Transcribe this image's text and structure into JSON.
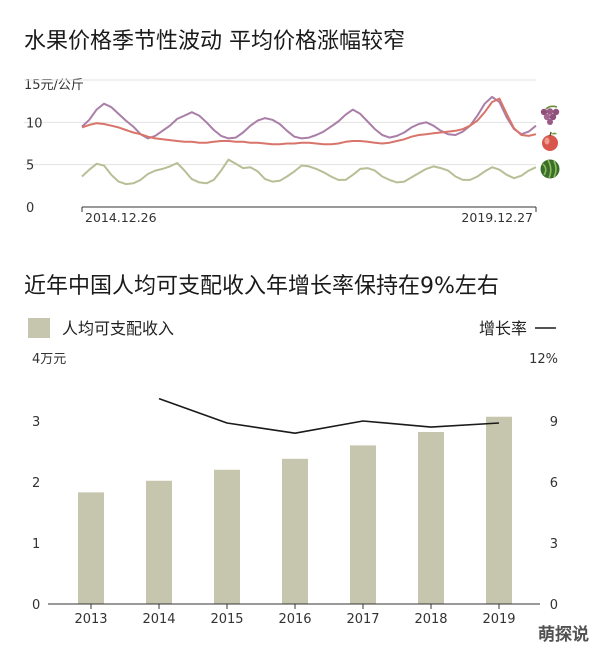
{
  "chart_data": [
    {
      "type": "line",
      "title": "水果价格季节性波动 平均价格涨幅较窄",
      "ylabel": "15元/公斤",
      "ylim": [
        0,
        15
      ],
      "y_ticks": [
        {
          "label": "0",
          "value": 0
        },
        {
          "label": "5",
          "value": 5
        },
        {
          "label": "10",
          "value": 10
        }
      ],
      "x_start_label": "2014.12.26",
      "x_end_label": "2019.12.27",
      "series": [
        {
          "icon": "grape-icon",
          "color": "#a97fa8",
          "values": [
            9.5,
            10.3,
            11.5,
            12.2,
            11.8,
            11.0,
            10.2,
            9.5,
            8.6,
            8.1,
            8.4,
            9.0,
            9.6,
            10.4,
            10.8,
            11.2,
            10.8,
            10.0,
            9.1,
            8.4,
            8.1,
            8.2,
            8.8,
            9.6,
            10.2,
            10.5,
            10.3,
            9.8,
            9.0,
            8.3,
            8.1,
            8.2,
            8.5,
            8.9,
            9.5,
            10.1,
            10.9,
            11.5,
            11.0,
            10.1,
            9.2,
            8.5,
            8.2,
            8.4,
            8.8,
            9.4,
            9.8,
            10.0,
            9.6,
            9.0,
            8.6,
            8.5,
            8.9,
            9.6,
            10.8,
            12.2,
            13.0,
            12.4,
            10.6,
            9.2,
            8.6,
            8.9,
            9.6
          ]
        },
        {
          "icon": "apple-icon",
          "color": "#d9746a",
          "values": [
            9.4,
            9.7,
            9.9,
            9.8,
            9.6,
            9.4,
            9.1,
            8.8,
            8.6,
            8.3,
            8.1,
            8.0,
            7.9,
            7.8,
            7.7,
            7.7,
            7.6,
            7.6,
            7.7,
            7.8,
            7.8,
            7.7,
            7.7,
            7.6,
            7.6,
            7.5,
            7.4,
            7.4,
            7.5,
            7.5,
            7.6,
            7.6,
            7.5,
            7.4,
            7.4,
            7.5,
            7.7,
            7.8,
            7.8,
            7.7,
            7.6,
            7.5,
            7.6,
            7.8,
            8.0,
            8.3,
            8.5,
            8.6,
            8.7,
            8.8,
            8.9,
            9.0,
            9.2,
            9.6,
            10.2,
            11.2,
            12.4,
            12.8,
            11.0,
            9.3,
            8.5,
            8.4,
            8.6
          ]
        },
        {
          "icon": "watermelon-icon",
          "color": "#b6bf95",
          "values": [
            3.6,
            4.4,
            5.1,
            4.9,
            3.8,
            3.0,
            2.7,
            2.8,
            3.2,
            3.9,
            4.3,
            4.5,
            4.8,
            5.2,
            4.3,
            3.3,
            2.9,
            2.8,
            3.2,
            4.3,
            5.6,
            5.1,
            4.6,
            4.7,
            4.2,
            3.3,
            3.0,
            3.1,
            3.6,
            4.2,
            4.9,
            4.8,
            4.5,
            4.1,
            3.6,
            3.2,
            3.2,
            3.8,
            4.5,
            4.6,
            4.3,
            3.6,
            3.2,
            2.9,
            3.0,
            3.5,
            4.0,
            4.5,
            4.8,
            4.6,
            4.3,
            3.6,
            3.2,
            3.2,
            3.6,
            4.2,
            4.7,
            4.4,
            3.8,
            3.4,
            3.7,
            4.3,
            4.7
          ]
        }
      ]
    },
    {
      "type": "bar",
      "title": "近年中国人均可支配收入年增长率保持在9%左右",
      "categories": [
        "2013",
        "2014",
        "2015",
        "2016",
        "2017",
        "2018",
        "2019"
      ],
      "ylim": [
        0,
        4
      ],
      "ylim_right": [
        0,
        12
      ],
      "y_left_ticks": [
        "0",
        "1",
        "2",
        "3"
      ],
      "y_right_ticks": [
        "0",
        "3",
        "6",
        "9"
      ],
      "y_left_unit": "4万元",
      "y_right_unit": "12%",
      "series": [
        {
          "name": "人均可支配收入",
          "kind": "bar",
          "color": "#c6c5ae",
          "values": [
            1.83,
            2.02,
            2.2,
            2.38,
            2.6,
            2.82,
            3.07
          ]
        },
        {
          "name": "增长率",
          "kind": "line",
          "color": "#1a1a1a",
          "values": [
            null,
            10.1,
            8.9,
            8.4,
            9.0,
            8.7,
            8.9
          ]
        }
      ],
      "legend": {
        "bar_label": "人均可支配收入",
        "line_label": "增长率",
        "placement": "top"
      }
    }
  ],
  "watermark": "萌探说"
}
